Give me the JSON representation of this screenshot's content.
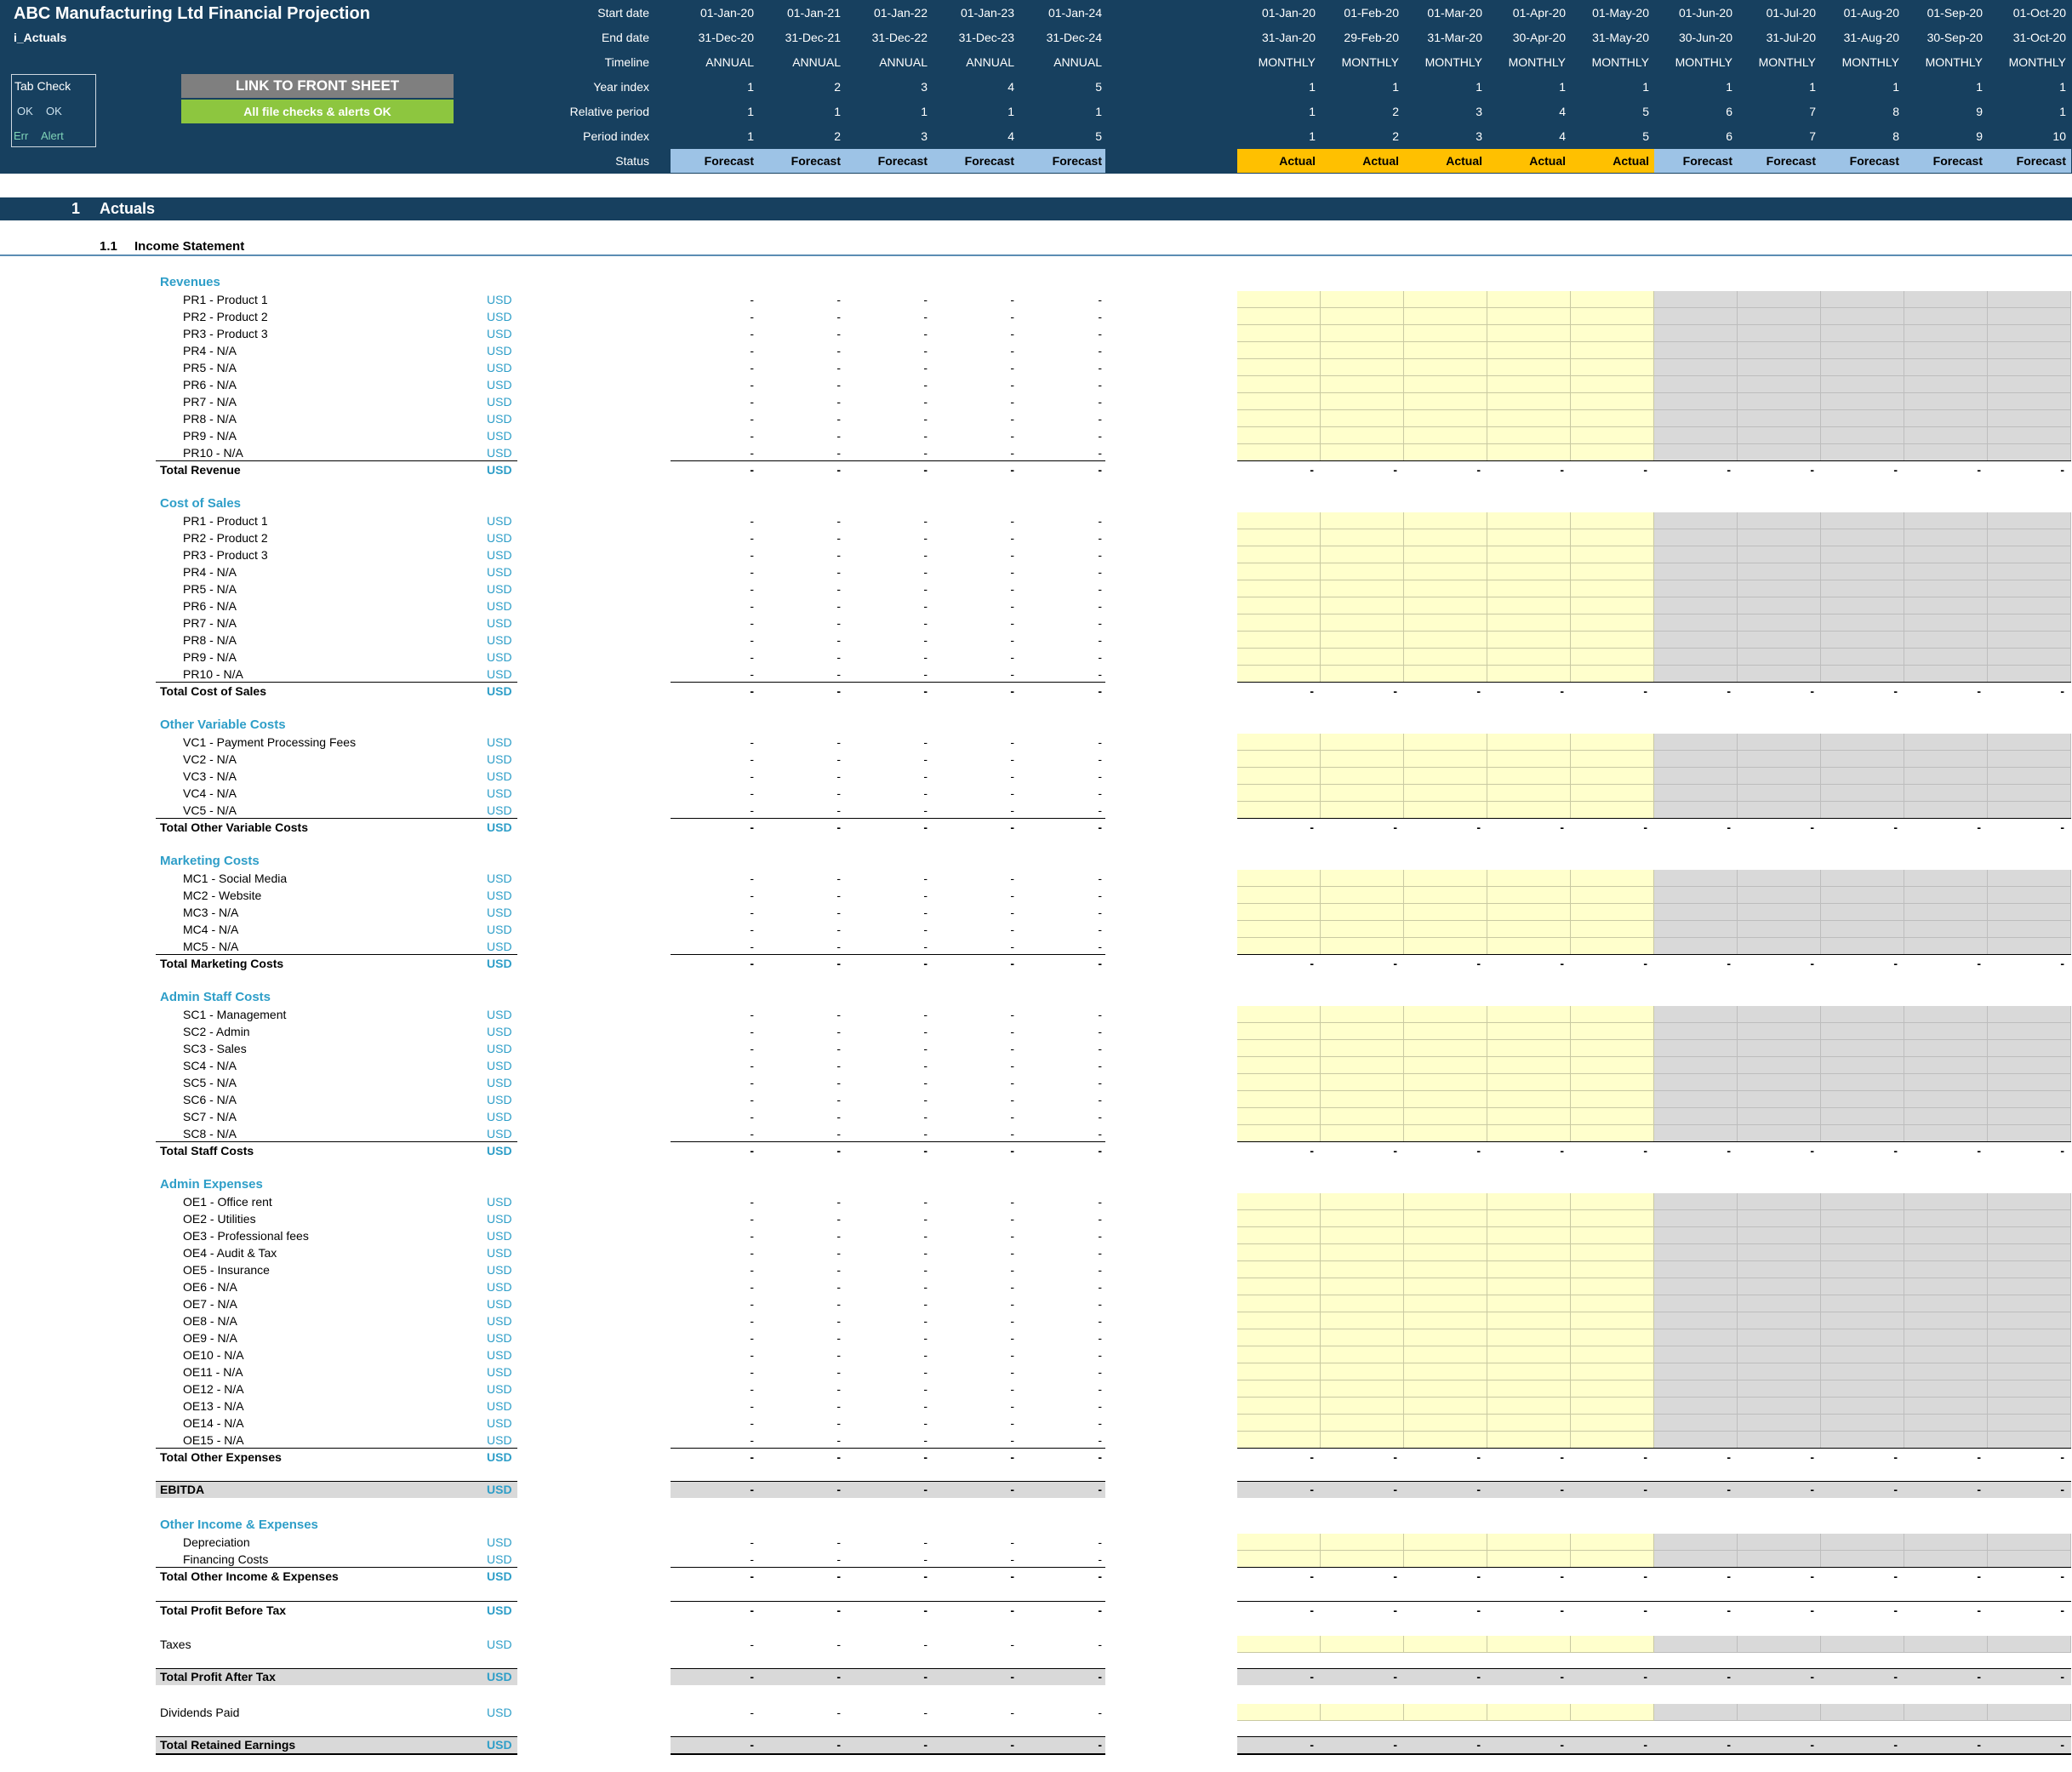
{
  "header": {
    "title": "ABC Manufacturing Ltd Financial Projection",
    "sheet": "i_Actuals",
    "link_button": "LINK TO FRONT SHEET",
    "alerts_ok": "All file checks & alerts OK",
    "tab_check": {
      "title": "Tab Check",
      "ok1": "OK",
      "ok2": "OK",
      "err": "Err",
      "alert": "Alert"
    },
    "row_labels": [
      "Start date",
      "End date",
      "Timeline",
      "Year index",
      "Relative period",
      "Period index",
      "Status"
    ]
  },
  "annual_columns": [
    {
      "start": "01-Jan-20",
      "end": "31-Dec-20",
      "timeline": "ANNUAL",
      "year": "1",
      "rel": "1",
      "idx": "1",
      "status": "Forecast"
    },
    {
      "start": "01-Jan-21",
      "end": "31-Dec-21",
      "timeline": "ANNUAL",
      "year": "2",
      "rel": "1",
      "idx": "2",
      "status": "Forecast"
    },
    {
      "start": "01-Jan-22",
      "end": "31-Dec-22",
      "timeline": "ANNUAL",
      "year": "3",
      "rel": "1",
      "idx": "3",
      "status": "Forecast"
    },
    {
      "start": "01-Jan-23",
      "end": "31-Dec-23",
      "timeline": "ANNUAL",
      "year": "4",
      "rel": "1",
      "idx": "4",
      "status": "Forecast"
    },
    {
      "start": "01-Jan-24",
      "end": "31-Dec-24",
      "timeline": "ANNUAL",
      "year": "5",
      "rel": "1",
      "idx": "5",
      "status": "Forecast"
    }
  ],
  "monthly_columns": [
    {
      "start": "01-Jan-20",
      "end": "31-Jan-20",
      "timeline": "MONTHLY",
      "year": "1",
      "rel": "1",
      "idx": "1",
      "status": "Actual"
    },
    {
      "start": "01-Feb-20",
      "end": "29-Feb-20",
      "timeline": "MONTHLY",
      "year": "1",
      "rel": "2",
      "idx": "2",
      "status": "Actual"
    },
    {
      "start": "01-Mar-20",
      "end": "31-Mar-20",
      "timeline": "MONTHLY",
      "year": "1",
      "rel": "3",
      "idx": "3",
      "status": "Actual"
    },
    {
      "start": "01-Apr-20",
      "end": "30-Apr-20",
      "timeline": "MONTHLY",
      "year": "1",
      "rel": "4",
      "idx": "4",
      "status": "Actual"
    },
    {
      "start": "01-May-20",
      "end": "31-May-20",
      "timeline": "MONTHLY",
      "year": "1",
      "rel": "5",
      "idx": "5",
      "status": "Actual"
    },
    {
      "start": "01-Jun-20",
      "end": "30-Jun-20",
      "timeline": "MONTHLY",
      "year": "1",
      "rel": "6",
      "idx": "6",
      "status": "Forecast"
    },
    {
      "start": "01-Jul-20",
      "end": "31-Jul-20",
      "timeline": "MONTHLY",
      "year": "1",
      "rel": "7",
      "idx": "7",
      "status": "Forecast"
    },
    {
      "start": "01-Aug-20",
      "end": "31-Aug-20",
      "timeline": "MONTHLY",
      "year": "1",
      "rel": "8",
      "idx": "8",
      "status": "Forecast"
    },
    {
      "start": "01-Sep-20",
      "end": "30-Sep-20",
      "timeline": "MONTHLY",
      "year": "1",
      "rel": "9",
      "idx": "9",
      "status": "Forecast"
    },
    {
      "start": "01-Oct-20",
      "end": "31-Oct-20",
      "timeline": "MONTHLY",
      "year": "1",
      "rel": "1",
      "idx": "10",
      "status": "Forecast"
    }
  ],
  "section": {
    "number": "1",
    "title": "Actuals"
  },
  "subsection": {
    "number": "1.1",
    "title": "Income Statement"
  },
  "unit": "USD",
  "dash": "-",
  "groups": [
    {
      "title": "Revenues",
      "items": [
        "PR1 - Product 1",
        "PR2 - Product 2",
        "PR3 - Product 3",
        "PR4 - N/A",
        "PR5 - N/A",
        "PR6 - N/A",
        "PR7 - N/A",
        "PR8 - N/A",
        "PR9 - N/A",
        "PR10 - N/A"
      ],
      "total": "Total Revenue"
    },
    {
      "title": "Cost of Sales",
      "items": [
        "PR1 - Product 1",
        "PR2 - Product 2",
        "PR3 - Product 3",
        "PR4 - N/A",
        "PR5 - N/A",
        "PR6 - N/A",
        "PR7 - N/A",
        "PR8 - N/A",
        "PR9 - N/A",
        "PR10 - N/A"
      ],
      "total": "Total Cost of Sales"
    },
    {
      "title": "Other Variable Costs",
      "items": [
        "VC1 - Payment Processing Fees",
        "VC2 - N/A",
        "VC3 - N/A",
        "VC4 - N/A",
        "VC5 - N/A"
      ],
      "total": "Total Other Variable Costs"
    },
    {
      "title": "Marketing Costs",
      "items": [
        "MC1 - Social Media",
        "MC2 - Website",
        "MC3 - N/A",
        "MC4 - N/A",
        "MC5 - N/A"
      ],
      "total": "Total Marketing Costs"
    },
    {
      "title": "Admin Staff Costs",
      "items": [
        "SC1 - Management",
        "SC2 - Admin",
        "SC3 - Sales",
        "SC4 - N/A",
        "SC5 - N/A",
        "SC6 - N/A",
        "SC7 - N/A",
        "SC8 - N/A"
      ],
      "total": "Total Staff Costs"
    },
    {
      "title": "Admin Expenses",
      "items": [
        "OE1 - Office rent",
        "OE2 - Utilities",
        "OE3 - Professional fees",
        "OE4 - Audit & Tax",
        "OE5 - Insurance",
        "OE6 - N/A",
        "OE7 - N/A",
        "OE8 - N/A",
        "OE9 - N/A",
        "OE10 - N/A",
        "OE11 - N/A",
        "OE12 - N/A",
        "OE13 - N/A",
        "OE14 - N/A",
        "OE15 - N/A"
      ],
      "total": "Total Other Expenses"
    }
  ],
  "ebitda": "EBITDA",
  "other_income": {
    "title": "Other Income & Expenses",
    "items": [
      "Depreciation",
      "Financing Costs"
    ],
    "total": "Total Other Income & Expenses"
  },
  "profit_before_tax": "Total Profit Before Tax",
  "taxes": "Taxes",
  "profit_after_tax": "Total Profit After Tax",
  "dividends": "Dividends Paid",
  "retained": "Total Retained Earnings",
  "colors": {
    "header_bg": "#17405f",
    "forecast_status": "#9dc3e6",
    "actual_status": "#ffc000",
    "input_cell": "#ffffcc",
    "locked_cell": "#d9d9d9",
    "link_button": "#7f7f7f",
    "ok_button": "#8dc63f",
    "accent_blue": "#2e9ec8"
  }
}
